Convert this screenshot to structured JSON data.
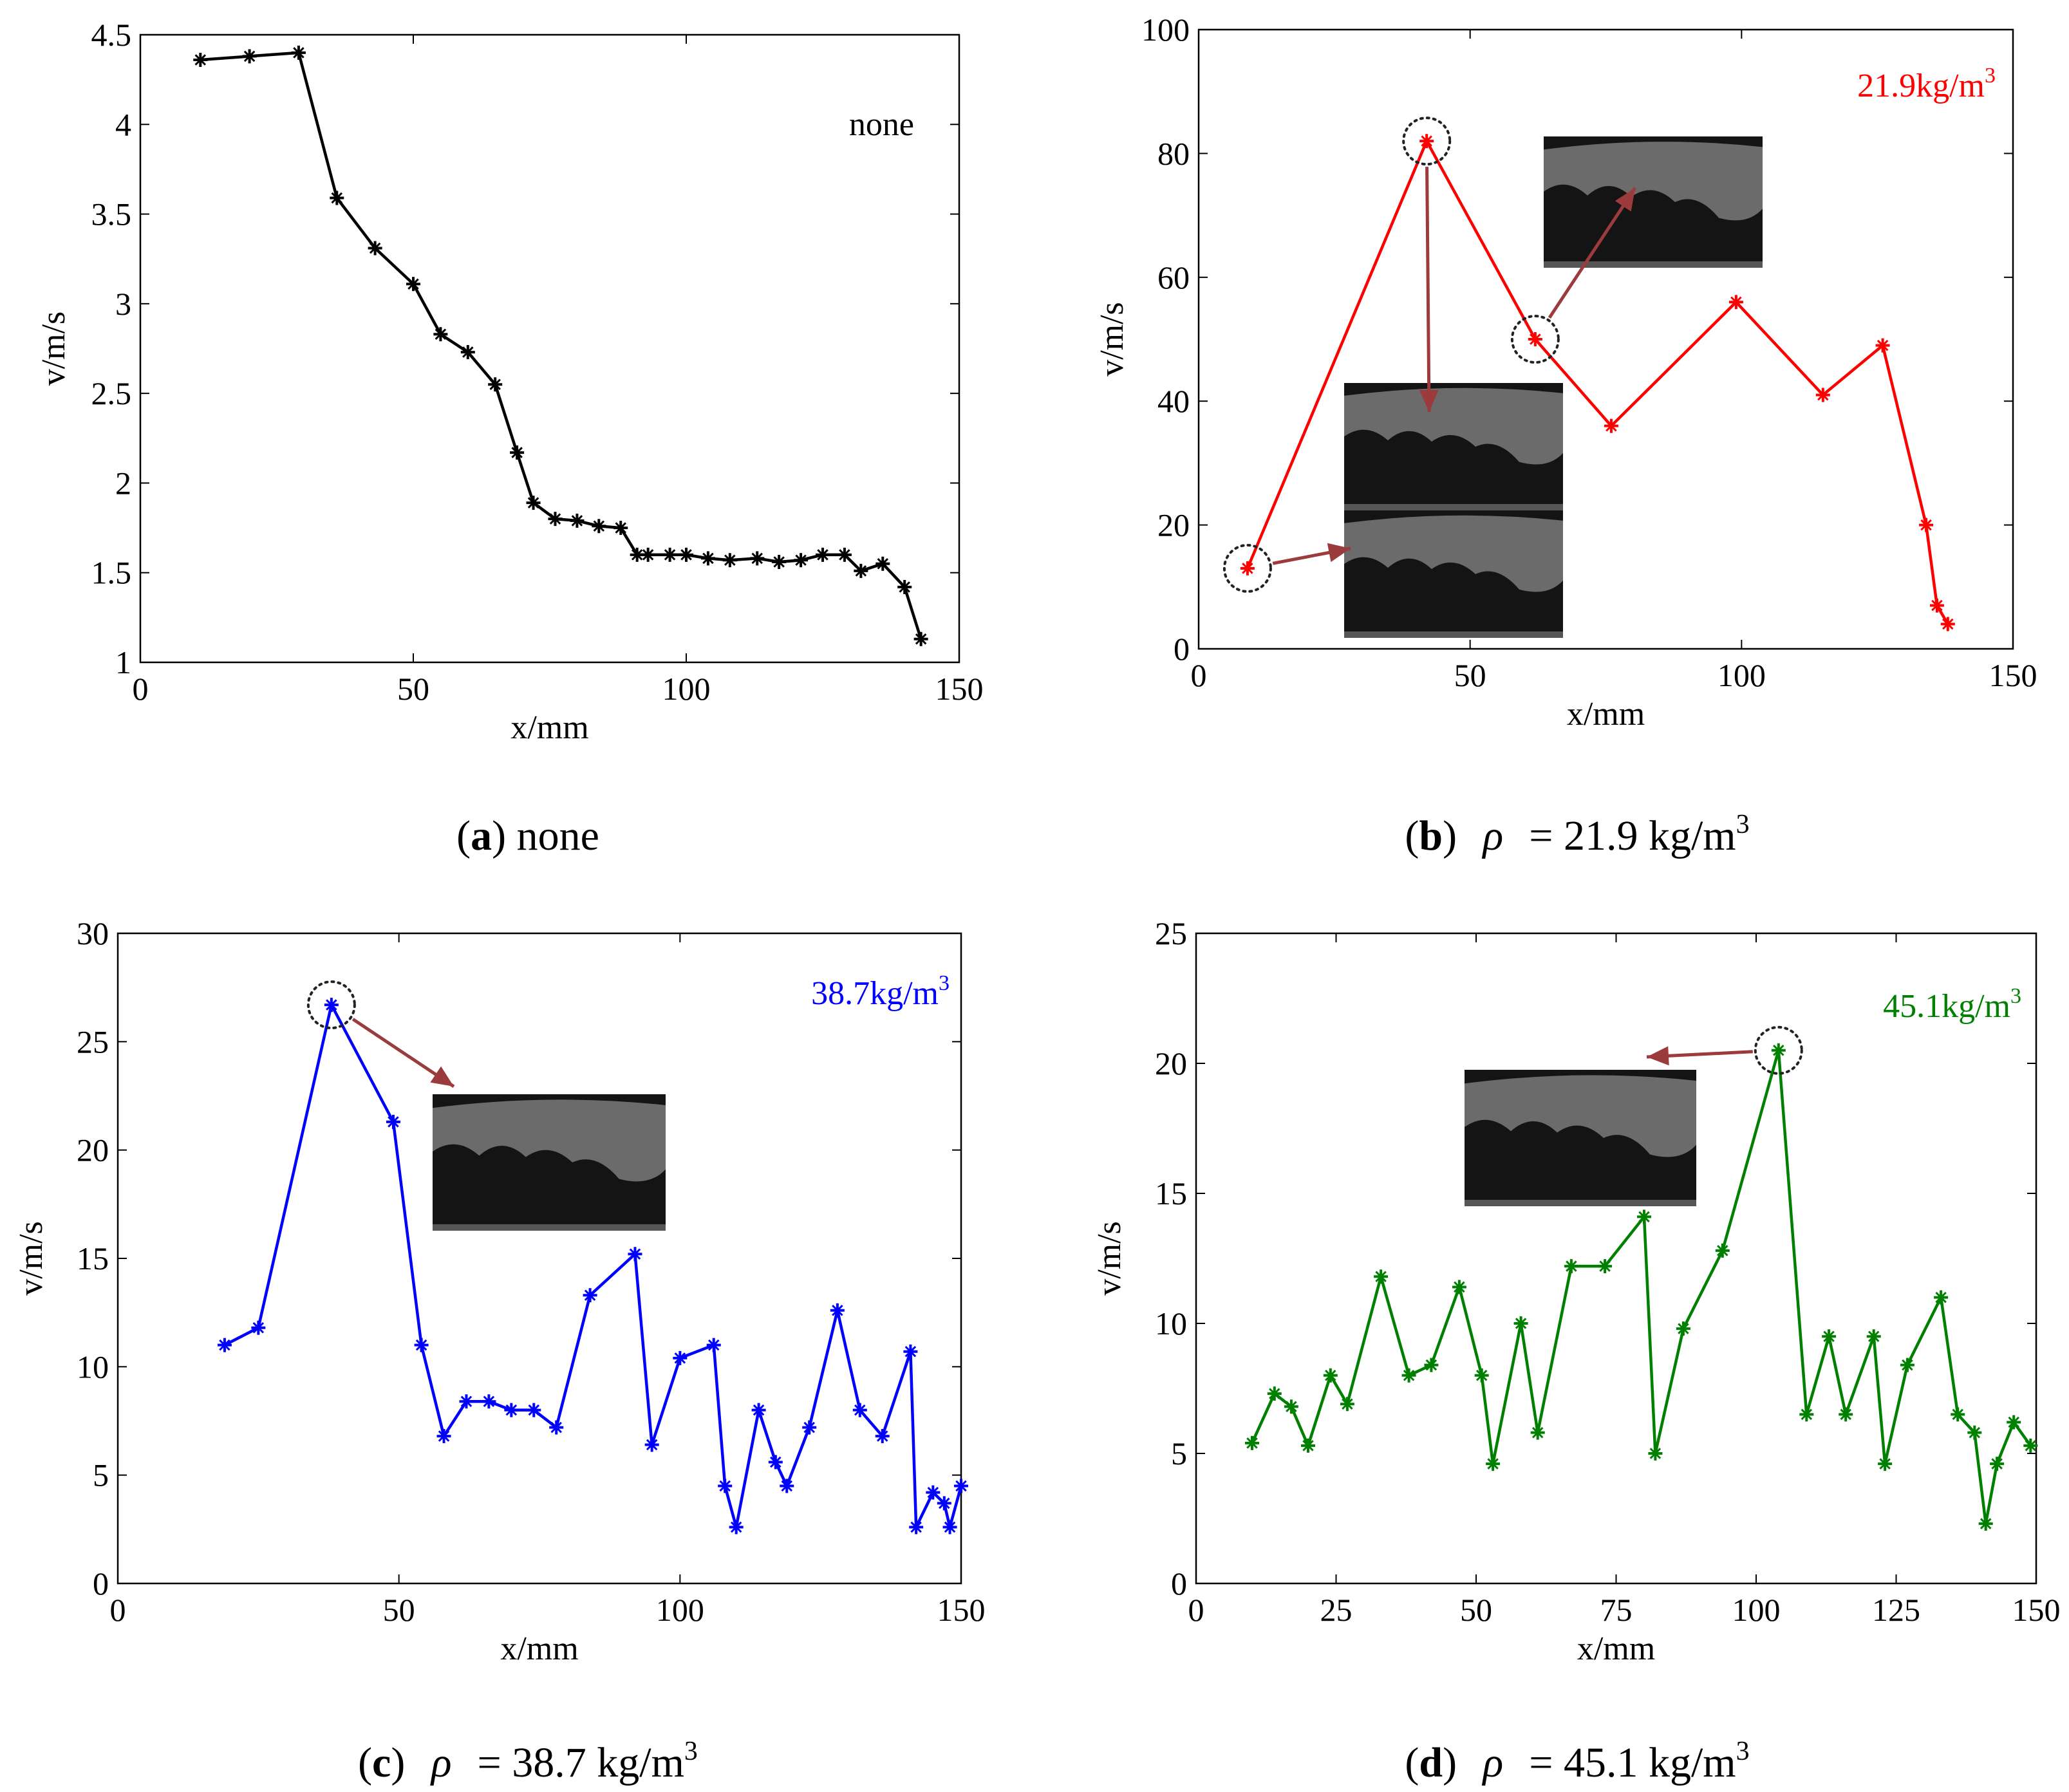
{
  "chart_data": [
    {
      "type": "line",
      "panel": "a",
      "color": "#000000",
      "annotation": "none",
      "caption": {
        "letter": "a",
        "text": "none"
      },
      "xlabel": "x/mm",
      "ylabel": "v/m/s",
      "xlim": [
        0,
        150
      ],
      "ylim": [
        1,
        4.5
      ],
      "xticks": [
        0,
        50,
        100,
        150
      ],
      "yticks": [
        1,
        1.5,
        2,
        2.5,
        3,
        3.5,
        4,
        4.5
      ],
      "ytick_labels": [
        "1",
        "1.5",
        "2",
        "2.5",
        "3",
        "3.5",
        "4",
        "4.5"
      ],
      "x": [
        11,
        20,
        29,
        36,
        43,
        50,
        55,
        60,
        65,
        69,
        72,
        76,
        80,
        84,
        88,
        91,
        93,
        97,
        100,
        104,
        108,
        113,
        117,
        121,
        125,
        129,
        132,
        136,
        140,
        143
      ],
      "y": [
        4.36,
        4.38,
        4.4,
        3.59,
        3.31,
        3.11,
        2.83,
        2.73,
        2.55,
        2.17,
        1.89,
        1.8,
        1.79,
        1.76,
        1.75,
        1.6,
        1.6,
        1.6,
        1.6,
        1.58,
        1.57,
        1.58,
        1.56,
        1.57,
        1.6,
        1.6,
        1.51,
        1.55,
        1.42,
        1.13
      ]
    },
    {
      "type": "line",
      "panel": "b",
      "color": "#ff0000",
      "annotation": "21.9kg/m",
      "annotation_sup": "3",
      "caption": {
        "letter": "b",
        "rho": "ρ",
        "text": "= 21.9 kg/m",
        "sup": "3"
      },
      "xlabel": "x/mm",
      "ylabel": "v/m/s",
      "xlim": [
        0,
        150
      ],
      "ylim": [
        0,
        100
      ],
      "xticks": [
        0,
        50,
        100,
        150
      ],
      "yticks": [
        0,
        20,
        40,
        60,
        80,
        100
      ],
      "ytick_labels": [
        "0",
        "20",
        "40",
        "60",
        "80",
        "100"
      ],
      "x": [
        9,
        42,
        62,
        76,
        99,
        115,
        126,
        134,
        136,
        138
      ],
      "y": [
        13,
        82,
        50,
        36,
        56,
        41,
        49,
        20,
        7,
        4
      ],
      "circled": [
        0,
        1,
        2
      ]
    },
    {
      "type": "line",
      "panel": "c",
      "color": "#0000ff",
      "annotation": "38.7kg/m",
      "annotation_sup": "3",
      "caption": {
        "letter": "c",
        "rho": "ρ",
        "text": "= 38.7 kg/m",
        "sup": "3"
      },
      "xlabel": "x/mm",
      "ylabel": "v/m/s",
      "xlim": [
        0,
        150
      ],
      "ylim": [
        0,
        30
      ],
      "xticks": [
        0,
        50,
        100,
        150
      ],
      "yticks": [
        0,
        5,
        10,
        15,
        20,
        25,
        30
      ],
      "ytick_labels": [
        "0",
        "5",
        "10",
        "15",
        "20",
        "25",
        "30"
      ],
      "x": [
        19,
        25,
        38,
        49,
        54,
        58,
        62,
        66,
        70,
        74,
        78,
        84,
        92,
        95,
        100,
        106,
        108,
        110,
        114,
        117,
        119,
        123,
        128,
        132,
        136,
        141,
        142,
        145,
        147,
        148,
        150
      ],
      "y": [
        11,
        11.8,
        26.7,
        21.3,
        11,
        6.8,
        8.4,
        8.4,
        8,
        8,
        7.2,
        13.3,
        15.2,
        6.4,
        10.4,
        11,
        4.5,
        2.6,
        8,
        5.6,
        4.5,
        7.2,
        12.6,
        8,
        6.8,
        10.7,
        2.6,
        4.2,
        3.7,
        2.6,
        4.5
      ],
      "circled": [
        2
      ]
    },
    {
      "type": "line",
      "panel": "d",
      "color": "#008000",
      "annotation": "45.1kg/m",
      "annotation_sup": "3",
      "caption": {
        "letter": "d",
        "rho": "ρ",
        "text": "= 45.1 kg/m",
        "sup": "3"
      },
      "xlabel": "x/mm",
      "ylabel": "v/m/s",
      "xlim": [
        0,
        150
      ],
      "ylim": [
        0,
        25
      ],
      "xticks": [
        0,
        25,
        50,
        75,
        100,
        125,
        150
      ],
      "yticks": [
        0,
        5,
        10,
        15,
        20,
        25
      ],
      "ytick_labels": [
        "0",
        "5",
        "10",
        "15",
        "20",
        "25"
      ],
      "x": [
        10,
        14,
        17,
        20,
        24,
        27,
        33,
        38,
        42,
        47,
        51,
        53,
        58,
        61,
        67,
        73,
        80,
        82,
        87,
        94,
        104,
        109,
        113,
        116,
        121,
        123,
        127,
        133,
        136,
        139,
        141,
        143,
        146,
        149
      ],
      "y": [
        5.4,
        7.3,
        6.8,
        5.3,
        8,
        6.9,
        11.8,
        8,
        8.4,
        11.4,
        8,
        4.6,
        10,
        5.8,
        12.2,
        12.2,
        14.1,
        5,
        9.8,
        12.8,
        20.5,
        6.5,
        9.5,
        6.5,
        9.5,
        4.6,
        8.4,
        11,
        6.5,
        5.8,
        2.3,
        4.6,
        6.2,
        5.3
      ],
      "circled": [
        20
      ]
    }
  ]
}
